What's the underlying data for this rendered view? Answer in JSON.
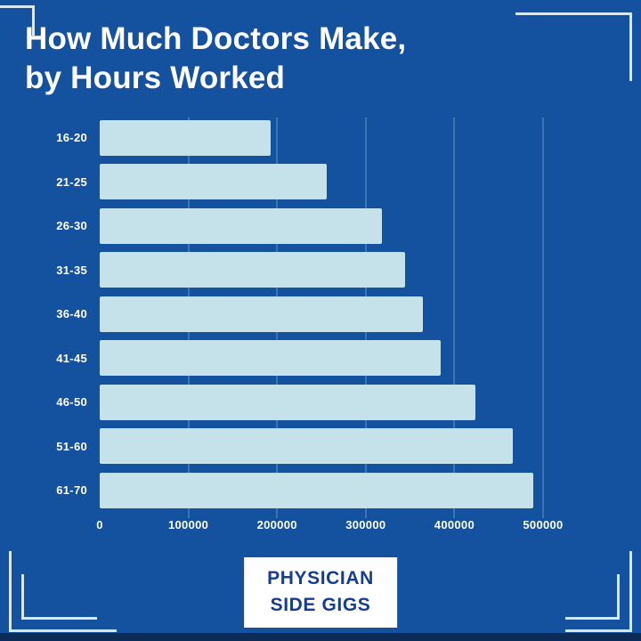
{
  "title": {
    "line1": "How Much Doctors Make,",
    "line2": "by Hours Worked"
  },
  "badge": {
    "line1": "PHYSICIAN",
    "line2": "SIDE GIGS"
  },
  "colors": {
    "background": "#14519f",
    "bar": "#c5e2ea",
    "grid": "#3c74b4",
    "title_text": "#ffffff",
    "badge_bg": "#ffffff",
    "badge_text": "#153e8c",
    "bracket": "#d8e8f3",
    "bottom_strip": "#0d2b57"
  },
  "chart_data": {
    "type": "bar",
    "orientation": "horizontal",
    "title": "How Much Doctors Make, by Hours Worked",
    "categories": [
      "16-20",
      "21-25",
      "26-30",
      "31-35",
      "36-40",
      "41-45",
      "46-50",
      "51-60",
      "61-70"
    ],
    "values": [
      193000,
      256000,
      318000,
      344000,
      364000,
      385000,
      424000,
      466000,
      489000
    ],
    "x_ticks": [
      "0",
      "100000",
      "200000",
      "300000",
      "400000",
      "500000"
    ],
    "xlim": [
      0,
      500000
    ],
    "xlabel": "",
    "ylabel": "",
    "grid": "vertical",
    "legend": "none"
  }
}
